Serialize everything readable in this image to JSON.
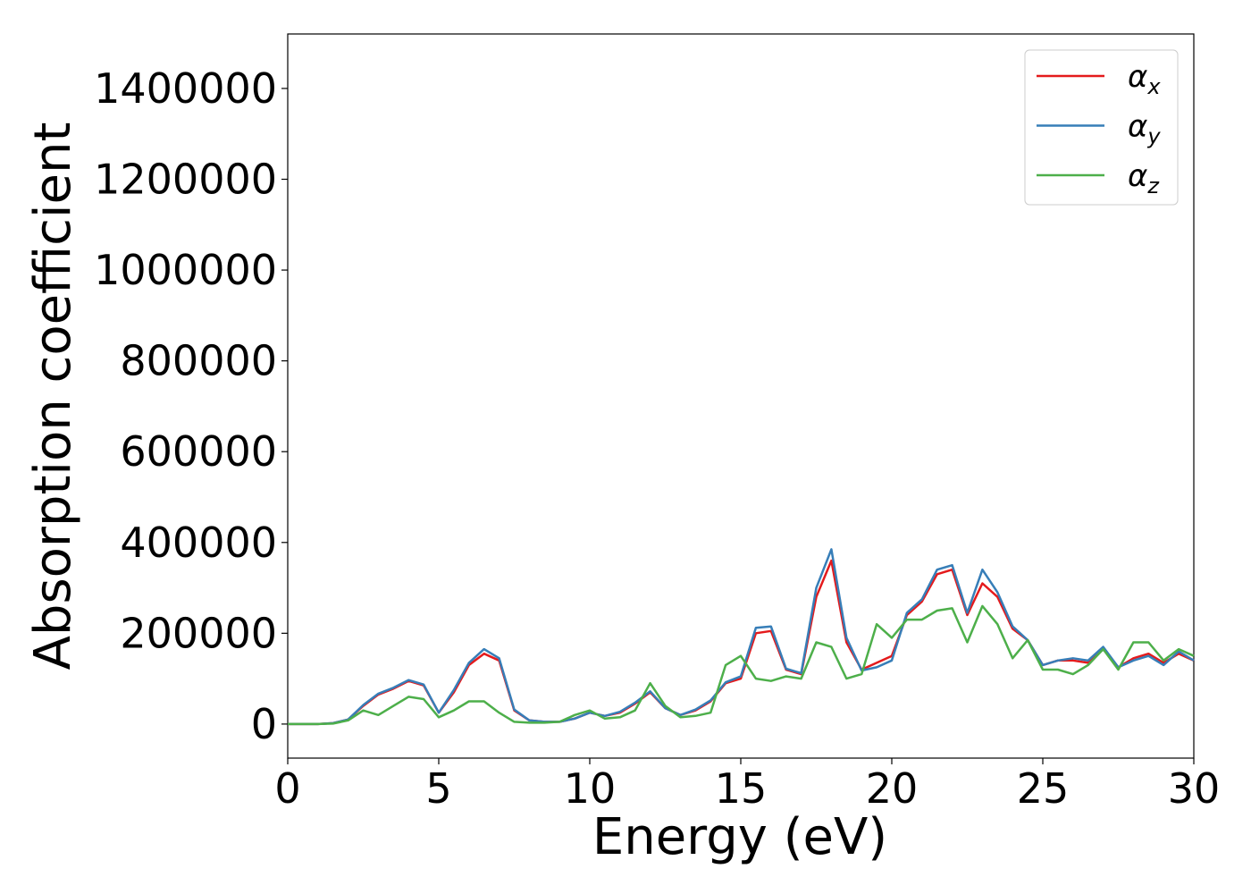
{
  "chart_data": {
    "type": "line",
    "xlabel": "Energy (eV)",
    "ylabel": "Absorption coefficient",
    "x": [
      0,
      0.5,
      1,
      1.5,
      2,
      2.5,
      3,
      3.5,
      4,
      4.5,
      5,
      5.5,
      6,
      6.5,
      7,
      7.5,
      8,
      8.5,
      9,
      9.5,
      10,
      10.5,
      11,
      11.5,
      12,
      12.5,
      13,
      13.5,
      14,
      14.5,
      15,
      15.5,
      16,
      16.5,
      17,
      17.5,
      18,
      18.5,
      19,
      19.5,
      20,
      20.5,
      21,
      21.5,
      22,
      22.5,
      23,
      23.5,
      24,
      24.5,
      25,
      25.5,
      26,
      26.5,
      27,
      27.5,
      28,
      28.5,
      29,
      29.5,
      30
    ],
    "series": [
      {
        "name": "αx",
        "color": "#e41a1c",
        "values": [
          0,
          0,
          0,
          2000,
          10000,
          40000,
          65000,
          78000,
          95000,
          85000,
          25000,
          70000,
          130000,
          155000,
          140000,
          30000,
          8000,
          5000,
          5000,
          12000,
          25000,
          18000,
          25000,
          45000,
          70000,
          35000,
          20000,
          30000,
          50000,
          90000,
          100000,
          200000,
          205000,
          120000,
          110000,
          280000,
          360000,
          180000,
          120000,
          135000,
          150000,
          240000,
          270000,
          330000,
          340000,
          240000,
          310000,
          280000,
          210000,
          185000,
          130000,
          140000,
          140000,
          135000,
          165000,
          125000,
          145000,
          155000,
          135000,
          155000,
          140000
        ]
      },
      {
        "name": "αy",
        "color": "#377eb8",
        "values": [
          0,
          0,
          0,
          2000,
          10000,
          42000,
          67000,
          80000,
          97000,
          87000,
          25000,
          75000,
          135000,
          165000,
          145000,
          32000,
          8000,
          5000,
          5000,
          12000,
          25000,
          18000,
          27000,
          47000,
          72000,
          35000,
          20000,
          32000,
          52000,
          92000,
          105000,
          212000,
          215000,
          122000,
          112000,
          300000,
          385000,
          190000,
          118000,
          125000,
          140000,
          245000,
          275000,
          340000,
          350000,
          245000,
          340000,
          290000,
          215000,
          185000,
          130000,
          140000,
          145000,
          140000,
          170000,
          125000,
          140000,
          150000,
          130000,
          160000,
          140000
        ]
      },
      {
        "name": "αz",
        "color": "#4daf4a",
        "values": [
          0,
          0,
          0,
          1000,
          8000,
          30000,
          20000,
          40000,
          60000,
          55000,
          15000,
          30000,
          50000,
          50000,
          25000,
          5000,
          3000,
          3000,
          5000,
          20000,
          30000,
          12000,
          15000,
          30000,
          90000,
          40000,
          15000,
          18000,
          25000,
          130000,
          150000,
          100000,
          95000,
          105000,
          100000,
          180000,
          170000,
          100000,
          110000,
          220000,
          190000,
          230000,
          230000,
          250000,
          255000,
          180000,
          260000,
          220000,
          145000,
          185000,
          120000,
          120000,
          110000,
          130000,
          165000,
          120000,
          180000,
          180000,
          140000,
          165000,
          150000
        ]
      }
    ],
    "xlim": [
      0,
      30
    ],
    "ylim": [
      -75000,
      1520000
    ],
    "xticks": [
      0,
      5,
      10,
      15,
      20,
      25,
      30
    ],
    "yticks": [
      0,
      200000,
      400000,
      600000,
      800000,
      1000000,
      1200000,
      1400000
    ],
    "grid": false,
    "legend": "upper right"
  }
}
